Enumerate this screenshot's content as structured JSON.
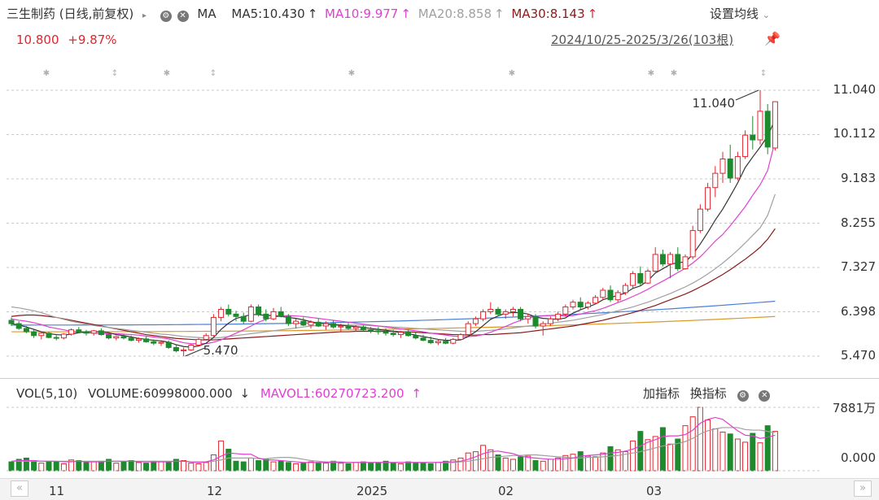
{
  "header": {
    "title": "三生制药 (日线,前复权)",
    "ma_label": "MA",
    "ma5": "MA5:10.430",
    "ma10": "MA10:9.977",
    "ma20": "MA20:8.858",
    "ma30": "MA30:8.143",
    "settings": "设置均线",
    "price": "10.800",
    "change": "+9.87%",
    "range": "2024/10/25-2025/3/26(103根)"
  },
  "volume_header": {
    "vol": "VOL(5,10)",
    "volume": "VOLUME:60998000.000",
    "mavol": "MAVOL1:60270723.200",
    "add_indicator": "加指标",
    "switch_indicator": "换指标"
  },
  "colors": {
    "up": "#e0262f",
    "down": "#1e8a2e",
    "ma5": "#333333",
    "ma10": "#e040d0",
    "ma20": "#a0a0a0",
    "ma30": "#8b1a1a",
    "ma60": "#4a7fd6",
    "ma120": "#d99a2b"
  },
  "chart_data": {
    "type": "candlestick",
    "y_ticks": [
      "11.040",
      "10.112",
      "9.183",
      "8.255",
      "7.327",
      "6.398",
      "5.470"
    ],
    "ylim": [
      5.47,
      11.04
    ],
    "vol_ticks": [
      "7881万",
      "0.000"
    ],
    "x_ticks": [
      "11",
      "12",
      "2025",
      "02",
      "03"
    ],
    "annotations": {
      "high": "11.040",
      "low": "5.470"
    },
    "candles": [
      [
        6.22,
        6.28,
        6.1,
        6.15
      ],
      [
        6.15,
        6.2,
        6.02,
        6.05
      ],
      [
        6.05,
        6.1,
        5.95,
        5.98
      ],
      [
        5.98,
        6.02,
        5.85,
        5.9
      ],
      [
        5.9,
        5.98,
        5.82,
        5.95
      ],
      [
        5.95,
        5.98,
        5.84,
        5.86
      ],
      [
        5.86,
        5.92,
        5.8,
        5.85
      ],
      [
        5.85,
        5.95,
        5.82,
        5.93
      ],
      [
        5.93,
        6.05,
        5.9,
        6.02
      ],
      [
        6.02,
        6.08,
        5.95,
        5.97
      ],
      [
        5.97,
        6.02,
        5.9,
        5.95
      ],
      [
        5.95,
        6.02,
        5.9,
        6.0
      ],
      [
        6.0,
        6.05,
        5.9,
        5.92
      ],
      [
        5.92,
        5.98,
        5.82,
        5.85
      ],
      [
        5.85,
        5.9,
        5.8,
        5.88
      ],
      [
        5.88,
        5.93,
        5.82,
        5.85
      ],
      [
        5.85,
        5.9,
        5.78,
        5.8
      ],
      [
        5.8,
        5.86,
        5.75,
        5.83
      ],
      [
        5.83,
        5.88,
        5.75,
        5.77
      ],
      [
        5.77,
        5.82,
        5.7,
        5.74
      ],
      [
        5.74,
        5.8,
        5.68,
        5.76
      ],
      [
        5.76,
        5.8,
        5.62,
        5.65
      ],
      [
        5.65,
        5.7,
        5.55,
        5.58
      ],
      [
        5.58,
        5.65,
        5.47,
        5.6
      ],
      [
        5.6,
        5.72,
        5.58,
        5.7
      ],
      [
        5.7,
        5.85,
        5.68,
        5.82
      ],
      [
        5.82,
        5.95,
        5.8,
        5.9
      ],
      [
        5.9,
        6.35,
        5.88,
        6.28
      ],
      [
        6.28,
        6.5,
        6.2,
        6.45
      ],
      [
        6.45,
        6.55,
        6.3,
        6.35
      ],
      [
        6.35,
        6.42,
        6.2,
        6.3
      ],
      [
        6.3,
        6.38,
        6.15,
        6.2
      ],
      [
        6.2,
        6.55,
        6.18,
        6.5
      ],
      [
        6.5,
        6.55,
        6.3,
        6.35
      ],
      [
        6.35,
        6.45,
        6.2,
        6.25
      ],
      [
        6.25,
        6.48,
        6.22,
        6.4
      ],
      [
        6.4,
        6.5,
        6.28,
        6.3
      ],
      [
        6.3,
        6.35,
        6.1,
        6.15
      ],
      [
        6.15,
        6.25,
        6.05,
        6.2
      ],
      [
        6.2,
        6.28,
        6.1,
        6.12
      ],
      [
        6.12,
        6.22,
        6.05,
        6.18
      ],
      [
        6.18,
        6.25,
        6.08,
        6.1
      ],
      [
        6.1,
        6.2,
        6.02,
        6.15
      ],
      [
        6.15,
        6.22,
        6.05,
        6.08
      ],
      [
        6.08,
        6.15,
        5.98,
        6.1
      ],
      [
        6.1,
        6.18,
        6.02,
        6.05
      ],
      [
        6.05,
        6.12,
        5.98,
        6.08
      ],
      [
        6.08,
        6.12,
        6.0,
        6.02
      ],
      [
        6.02,
        6.08,
        5.95,
        6.0
      ],
      [
        6.0,
        6.08,
        5.92,
        5.98
      ],
      [
        5.98,
        6.05,
        5.9,
        5.95
      ],
      [
        5.95,
        6.02,
        5.88,
        5.92
      ],
      [
        5.92,
        6.0,
        5.85,
        5.97
      ],
      [
        5.97,
        6.02,
        5.88,
        5.9
      ],
      [
        5.9,
        5.98,
        5.82,
        5.85
      ],
      [
        5.85,
        5.92,
        5.78,
        5.8
      ],
      [
        5.8,
        5.88,
        5.72,
        5.75
      ],
      [
        5.75,
        5.82,
        5.7,
        5.78
      ],
      [
        5.78,
        5.85,
        5.72,
        5.74
      ],
      [
        5.74,
        5.85,
        5.72,
        5.82
      ],
      [
        5.82,
        5.95,
        5.8,
        5.92
      ],
      [
        5.92,
        6.2,
        5.9,
        6.15
      ],
      [
        6.15,
        6.3,
        6.1,
        6.25
      ],
      [
        6.25,
        6.45,
        6.2,
        6.4
      ],
      [
        6.4,
        6.6,
        6.35,
        6.45
      ],
      [
        6.45,
        6.5,
        6.3,
        6.35
      ],
      [
        6.35,
        6.45,
        6.25,
        6.4
      ],
      [
        6.4,
        6.5,
        6.3,
        6.45
      ],
      [
        6.45,
        6.5,
        6.2,
        6.25
      ],
      [
        6.25,
        6.35,
        6.15,
        6.3
      ],
      [
        6.3,
        6.35,
        6.05,
        6.1
      ],
      [
        6.1,
        6.2,
        5.9,
        6.15
      ],
      [
        6.15,
        6.3,
        6.1,
        6.25
      ],
      [
        6.25,
        6.4,
        6.2,
        6.35
      ],
      [
        6.35,
        6.55,
        6.3,
        6.5
      ],
      [
        6.5,
        6.65,
        6.45,
        6.6
      ],
      [
        6.6,
        6.7,
        6.45,
        6.5
      ],
      [
        6.5,
        6.62,
        6.45,
        6.58
      ],
      [
        6.58,
        6.75,
        6.55,
        6.7
      ],
      [
        6.7,
        6.9,
        6.65,
        6.85
      ],
      [
        6.85,
        6.95,
        6.6,
        6.65
      ],
      [
        6.65,
        6.85,
        6.6,
        6.8
      ],
      [
        6.8,
        7.0,
        6.75,
        6.95
      ],
      [
        6.95,
        7.25,
        6.9,
        7.2
      ],
      [
        7.2,
        7.35,
        6.95,
        7.0
      ],
      [
        7.0,
        7.3,
        6.98,
        7.25
      ],
      [
        7.25,
        7.75,
        7.2,
        7.6
      ],
      [
        7.6,
        7.7,
        7.35,
        7.4
      ],
      [
        7.4,
        7.65,
        7.1,
        7.6
      ],
      [
        7.6,
        7.75,
        7.25,
        7.3
      ],
      [
        7.3,
        7.6,
        7.28,
        7.55
      ],
      [
        7.55,
        8.2,
        7.5,
        8.1
      ],
      [
        8.1,
        8.65,
        8.05,
        8.55
      ],
      [
        8.55,
        9.1,
        8.5,
        9.0
      ],
      [
        9.0,
        9.45,
        8.8,
        9.3
      ],
      [
        9.3,
        9.75,
        9.1,
        9.6
      ],
      [
        9.6,
        9.9,
        9.1,
        9.2
      ],
      [
        9.2,
        9.75,
        9.15,
        9.65
      ],
      [
        9.65,
        10.2,
        9.6,
        10.1
      ],
      [
        10.1,
        10.5,
        9.8,
        10.0
      ],
      [
        10.0,
        11.04,
        9.9,
        10.6
      ],
      [
        10.6,
        10.75,
        9.7,
        9.85
      ],
      [
        9.83,
        10.8,
        9.78,
        10.8
      ]
    ],
    "volumes": [
      14,
      18,
      20,
      16,
      12,
      15,
      14,
      11,
      17,
      16,
      13,
      14,
      15,
      18,
      12,
      14,
      16,
      13,
      12,
      15,
      14,
      13,
      18,
      16,
      12,
      11,
      13,
      25,
      47,
      34,
      15,
      14,
      20,
      16,
      18,
      14,
      15,
      13,
      11,
      12,
      14,
      13,
      12,
      15,
      12,
      11,
      13,
      14,
      12,
      13,
      15,
      12,
      11,
      14,
      13,
      12,
      11,
      13,
      15,
      17,
      20,
      28,
      30,
      40,
      33,
      25,
      20,
      18,
      22,
      23,
      16,
      15,
      18,
      20,
      24,
      26,
      30,
      23,
      22,
      28,
      38,
      33,
      30,
      47,
      62,
      49,
      54,
      68,
      42,
      50,
      71,
      85,
      100,
      80,
      66,
      61,
      58,
      50,
      45,
      59,
      44,
      71,
      62
    ],
    "ma5": [
      6.15,
      6.12,
      6.08,
      6.03,
      5.98,
      5.94,
      5.92,
      5.91,
      5.93,
      5.96,
      5.98,
      5.98,
      5.98,
      5.96,
      5.92,
      5.9,
      5.87,
      5.84,
      5.82,
      5.8,
      5.79,
      5.76,
      5.71,
      5.67,
      5.66,
      5.68,
      5.74,
      5.86,
      6.03,
      6.16,
      6.26,
      6.3,
      6.34,
      6.34,
      6.32,
      6.32,
      6.3,
      6.28,
      6.26,
      6.23,
      6.19,
      6.16,
      6.15,
      6.13,
      6.12,
      6.1,
      6.09,
      6.07,
      6.05,
      6.03,
      6.01,
      5.99,
      5.96,
      5.94,
      5.91,
      5.88,
      5.85,
      5.82,
      5.8,
      5.8,
      5.81,
      5.88,
      5.98,
      6.11,
      6.24,
      6.31,
      6.37,
      6.38,
      6.38,
      6.35,
      6.29,
      6.26,
      6.25,
      6.24,
      6.27,
      6.37,
      6.44,
      6.5,
      6.56,
      6.65,
      6.7,
      6.74,
      6.79,
      6.89,
      6.94,
      7.05,
      7.21,
      7.3,
      7.39,
      7.43,
      7.44,
      7.6,
      7.82,
      8.06,
      8.32,
      8.55,
      8.82,
      9.1,
      9.42,
      9.64,
      9.85,
      10.08,
      10.43
    ],
    "ma10": [
      6.25,
      6.22,
      6.2,
      6.17,
      6.13,
      6.08,
      6.05,
      6.02,
      5.99,
      5.97,
      5.96,
      5.95,
      5.94,
      5.94,
      5.94,
      5.93,
      5.92,
      5.91,
      5.89,
      5.87,
      5.85,
      5.83,
      5.79,
      5.75,
      5.73,
      5.73,
      5.73,
      5.76,
      5.81,
      5.88,
      5.95,
      6.02,
      6.1,
      6.18,
      6.24,
      6.29,
      6.31,
      6.32,
      6.31,
      6.3,
      6.28,
      6.26,
      6.24,
      6.22,
      6.2,
      6.18,
      6.16,
      6.14,
      6.12,
      6.1,
      6.08,
      6.06,
      6.04,
      6.02,
      6.0,
      5.98,
      5.95,
      5.93,
      5.91,
      5.89,
      5.88,
      5.88,
      5.89,
      5.92,
      5.97,
      6.03,
      6.09,
      6.16,
      6.22,
      6.27,
      6.3,
      6.31,
      6.32,
      6.32,
      6.31,
      6.32,
      6.35,
      6.39,
      6.42,
      6.47,
      6.53,
      6.59,
      6.65,
      6.72,
      6.79,
      6.87,
      6.96,
      7.04,
      7.13,
      7.22,
      7.31,
      7.42,
      7.55,
      7.71,
      7.88,
      8.02,
      8.2,
      8.4,
      8.6,
      8.84,
      9.06,
      9.36,
      9.98
    ],
    "ma20": [
      6.5,
      6.48,
      6.45,
      6.42,
      6.38,
      6.33,
      6.28,
      6.24,
      6.2,
      6.17,
      6.14,
      6.11,
      6.09,
      6.07,
      6.05,
      6.03,
      6.01,
      5.99,
      5.97,
      5.95,
      5.93,
      5.92,
      5.9,
      5.88,
      5.87,
      5.86,
      5.85,
      5.85,
      5.86,
      5.88,
      5.9,
      5.92,
      5.94,
      5.96,
      5.98,
      6.0,
      6.02,
      6.04,
      6.06,
      6.08,
      6.1,
      6.11,
      6.12,
      6.12,
      6.12,
      6.12,
      6.12,
      6.12,
      6.11,
      6.1,
      6.09,
      6.08,
      6.07,
      6.06,
      6.05,
      6.04,
      6.03,
      6.02,
      6.01,
      6.0,
      5.99,
      5.99,
      5.99,
      6.0,
      6.01,
      6.02,
      6.04,
      6.06,
      6.08,
      6.1,
      6.12,
      6.14,
      6.16,
      6.18,
      6.2,
      6.22,
      6.25,
      6.28,
      6.31,
      6.34,
      6.38,
      6.42,
      6.46,
      6.5,
      6.55,
      6.6,
      6.66,
      6.72,
      6.78,
      6.85,
      6.92,
      7.0,
      7.09,
      7.19,
      7.3,
      7.42,
      7.55,
      7.69,
      7.84,
      8.0,
      8.16,
      8.42,
      8.86
    ],
    "ma30": [
      6.3,
      6.32,
      6.33,
      6.33,
      6.32,
      6.3,
      6.28,
      6.25,
      6.22,
      6.19,
      6.16,
      6.13,
      6.1,
      6.07,
      6.04,
      6.01,
      5.98,
      5.95,
      5.92,
      5.9,
      5.88,
      5.86,
      5.84,
      5.83,
      5.82,
      5.81,
      5.81,
      5.81,
      5.82,
      5.83,
      5.84,
      5.85,
      5.86,
      5.87,
      5.88,
      5.89,
      5.9,
      5.91,
      5.92,
      5.93,
      5.94,
      5.95,
      5.96,
      5.97,
      5.98,
      5.98,
      5.99,
      5.99,
      5.99,
      5.99,
      5.99,
      5.99,
      5.98,
      5.98,
      5.97,
      5.96,
      5.95,
      5.94,
      5.93,
      5.92,
      5.92,
      5.91,
      5.91,
      5.92,
      5.92,
      5.93,
      5.94,
      5.95,
      5.96,
      5.98,
      6.0,
      6.02,
      6.04,
      6.06,
      6.08,
      6.1,
      6.13,
      6.16,
      6.19,
      6.22,
      6.26,
      6.3,
      6.34,
      6.38,
      6.43,
      6.48,
      6.53,
      6.59,
      6.65,
      6.71,
      6.77,
      6.84,
      6.92,
      7.0,
      7.09,
      7.18,
      7.28,
      7.39,
      7.5,
      7.62,
      7.75,
      7.92,
      8.14
    ],
    "ma60_start": 6.12,
    "ma60_end": 6.62,
    "ma120_start": 5.98,
    "ma120_end": 6.3,
    "mavol5": [
      15,
      16,
      16,
      16,
      15,
      15,
      15,
      14,
      14,
      15,
      14,
      14,
      14,
      15,
      15,
      15,
      15,
      14,
      14,
      14,
      14,
      14,
      15,
      15,
      14,
      13,
      14,
      17,
      23,
      28,
      27,
      26,
      26,
      20,
      17,
      17,
      16,
      15,
      14,
      13,
      13,
      13,
      13,
      13,
      13,
      13,
      13,
      13,
      13,
      13,
      13,
      13,
      13,
      13,
      13,
      13,
      13,
      13,
      14,
      14,
      15,
      18,
      22,
      27,
      30,
      31,
      29,
      27,
      23,
      21,
      20,
      19,
      18,
      18,
      19,
      20,
      23,
      24,
      25,
      26,
      28,
      29,
      31,
      34,
      39,
      45,
      49,
      54,
      55,
      55,
      57,
      64,
      75,
      81,
      84,
      81,
      72,
      63,
      56,
      55,
      51,
      53,
      56
    ],
    "mavol10": [
      15,
      15,
      15,
      15,
      15,
      15,
      15,
      15,
      15,
      15,
      15,
      15,
      15,
      15,
      15,
      15,
      15,
      15,
      15,
      15,
      15,
      15,
      15,
      15,
      14,
      14,
      14,
      15,
      17,
      20,
      20,
      20,
      20,
      19,
      19,
      20,
      21,
      21,
      20,
      18,
      16,
      15,
      14,
      14,
      14,
      13,
      13,
      13,
      13,
      13,
      13,
      13,
      13,
      13,
      13,
      13,
      13,
      13,
      13,
      13,
      14,
      15,
      17,
      19,
      21,
      22,
      23,
      24,
      24,
      25,
      25,
      24,
      23,
      22,
      21,
      20,
      20,
      21,
      21,
      22,
      23,
      24,
      26,
      28,
      30,
      33,
      36,
      39,
      41,
      43,
      46,
      51,
      58,
      63,
      66,
      68,
      68,
      68,
      65,
      64,
      64,
      62,
      60
    ]
  }
}
